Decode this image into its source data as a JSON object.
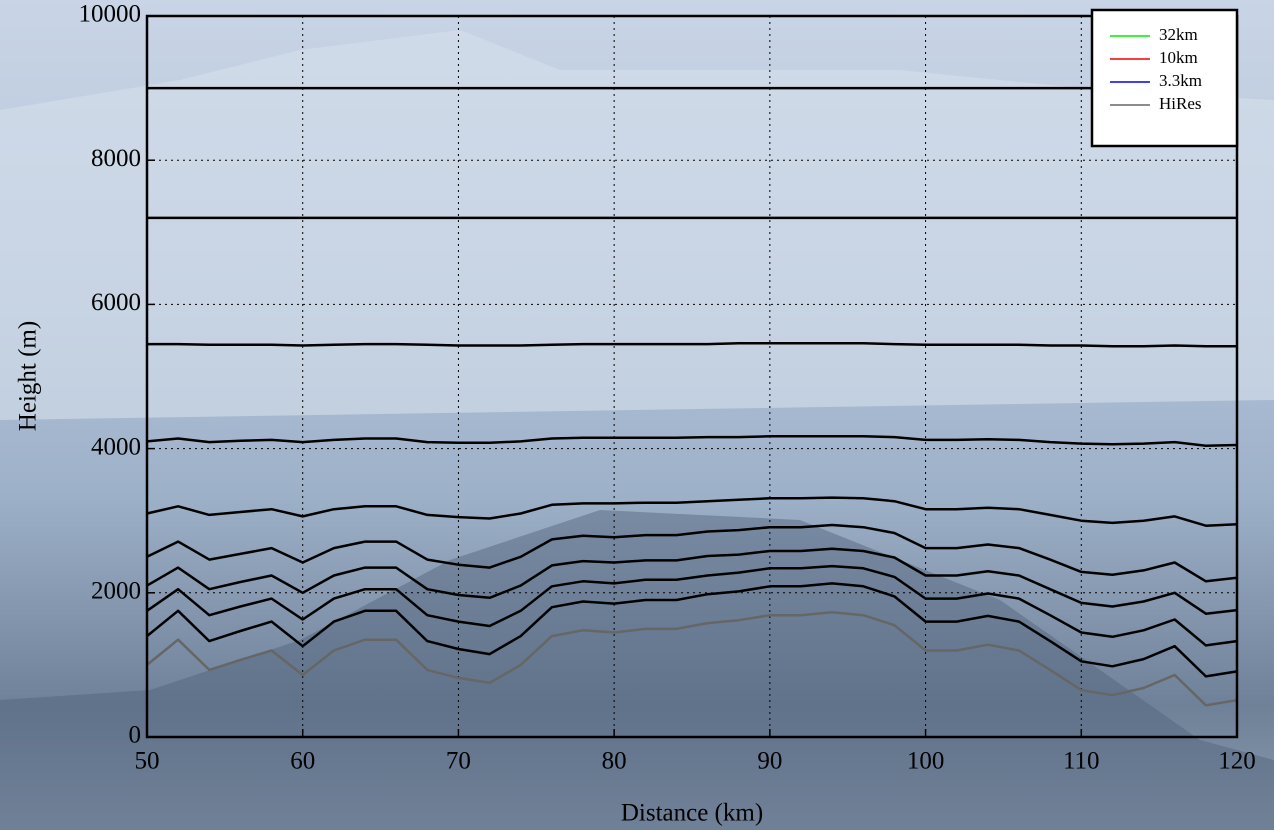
{
  "chart_data": {
    "type": "line",
    "xlabel": "Distance (km)",
    "ylabel": "Height (m)",
    "xlim": [
      50,
      120
    ],
    "xticks": [
      50,
      60,
      70,
      80,
      90,
      100,
      110,
      120
    ],
    "ylim": [
      0,
      10000
    ],
    "yticks": [
      0,
      2000,
      4000,
      6000,
      8000,
      10000
    ],
    "grid": true,
    "legend_position": "upper right",
    "x": [
      50,
      52,
      54,
      56,
      58,
      60,
      62,
      64,
      66,
      68,
      70,
      72,
      74,
      76,
      78,
      80,
      82,
      84,
      86,
      88,
      90,
      92,
      94,
      96,
      98,
      100,
      102,
      104,
      106,
      108,
      110,
      112,
      114,
      116,
      118,
      120
    ],
    "series": [
      {
        "name": "32km",
        "color": "#00ee00",
        "values": [
          null,
          null,
          null,
          null,
          null,
          null,
          null,
          null,
          null,
          null,
          null,
          null,
          null,
          null,
          null,
          null,
          null,
          null,
          null,
          null,
          null,
          null,
          null,
          null,
          null,
          null,
          null,
          null,
          null,
          null,
          null,
          null,
          null,
          null,
          null,
          null
        ]
      },
      {
        "name": "10km",
        "color": "#ee0000",
        "values": [
          null,
          null,
          null,
          null,
          null,
          null,
          null,
          null,
          null,
          null,
          null,
          null,
          null,
          null,
          null,
          null,
          null,
          null,
          null,
          null,
          null,
          null,
          null,
          null,
          null,
          null,
          null,
          null,
          null,
          null,
          null,
          null,
          null,
          null,
          null,
          null
        ]
      },
      {
        "name": "3.3km",
        "color": "#0000ee",
        "values": [
          null,
          null,
          null,
          null,
          null,
          null,
          null,
          null,
          null,
          null,
          null,
          null,
          null,
          null,
          null,
          null,
          null,
          null,
          null,
          null,
          null,
          null,
          null,
          null,
          null,
          null,
          null,
          null,
          null,
          null,
          null,
          null,
          null,
          null,
          null,
          null
        ]
      },
      {
        "name": "HiRes",
        "color": "#666666",
        "values": [
          1000,
          1350,
          930,
          1070,
          1200,
          860,
          1200,
          1350,
          1350,
          930,
          820,
          750,
          1000,
          1400,
          1480,
          1450,
          1500,
          1500,
          1580,
          1620,
          1690,
          1690,
          1730,
          1690,
          1550,
          1200,
          1200,
          1280,
          1200,
          930,
          650,
          580,
          680,
          860,
          440,
          510
        ]
      },
      {
        "color": "#000000",
        "values": [
          1400,
          1750,
          1330,
          1470,
          1600,
          1260,
          1600,
          1750,
          1750,
          1330,
          1220,
          1150,
          1400,
          1800,
          1880,
          1850,
          1900,
          1900,
          1980,
          2020,
          2090,
          2090,
          2130,
          2090,
          1950,
          1600,
          1600,
          1680,
          1600,
          1330,
          1050,
          980,
          1080,
          1260,
          840,
          910
        ]
      },
      {
        "color": "#000000",
        "values": [
          1750,
          2050,
          1690,
          1810,
          1920,
          1630,
          1920,
          2050,
          2050,
          1690,
          1600,
          1540,
          1750,
          2090,
          2160,
          2130,
          2180,
          2180,
          2240,
          2280,
          2340,
          2340,
          2370,
          2340,
          2220,
          1920,
          1920,
          1990,
          1920,
          1690,
          1450,
          1390,
          1480,
          1630,
          1270,
          1330
        ]
      },
      {
        "color": "#000000",
        "values": [
          2100,
          2350,
          2050,
          2150,
          2240,
          2000,
          2240,
          2350,
          2350,
          2050,
          1970,
          1930,
          2100,
          2380,
          2440,
          2420,
          2450,
          2450,
          2510,
          2530,
          2580,
          2580,
          2610,
          2580,
          2490,
          2240,
          2240,
          2300,
          2240,
          2050,
          1860,
          1810,
          1880,
          2000,
          1710,
          1760
        ]
      },
      {
        "color": "#000000",
        "values": [
          2500,
          2710,
          2460,
          2540,
          2620,
          2420,
          2620,
          2710,
          2710,
          2460,
          2390,
          2350,
          2500,
          2740,
          2790,
          2770,
          2800,
          2800,
          2850,
          2870,
          2910,
          2910,
          2940,
          2910,
          2830,
          2620,
          2620,
          2670,
          2620,
          2460,
          2290,
          2250,
          2310,
          2420,
          2160,
          2210
        ]
      },
      {
        "color": "#000000",
        "values": [
          3100,
          3200,
          3080,
          3120,
          3160,
          3060,
          3160,
          3200,
          3200,
          3080,
          3050,
          3030,
          3100,
          3220,
          3240,
          3240,
          3250,
          3250,
          3270,
          3290,
          3310,
          3310,
          3320,
          3310,
          3270,
          3160,
          3160,
          3180,
          3160,
          3080,
          3000,
          2970,
          3000,
          3060,
          2930,
          2950
        ]
      },
      {
        "color": "#000000",
        "values": [
          4100,
          4140,
          4090,
          4110,
          4120,
          4090,
          4120,
          4140,
          4140,
          4090,
          4080,
          4080,
          4100,
          4140,
          4150,
          4150,
          4150,
          4150,
          4160,
          4160,
          4170,
          4170,
          4170,
          4170,
          4160,
          4120,
          4120,
          4130,
          4120,
          4090,
          4070,
          4060,
          4070,
          4090,
          4040,
          4050
        ]
      },
      {
        "color": "#000000",
        "values": [
          5450,
          5450,
          5440,
          5440,
          5440,
          5430,
          5440,
          5450,
          5450,
          5440,
          5430,
          5430,
          5430,
          5440,
          5450,
          5450,
          5450,
          5450,
          5450,
          5460,
          5460,
          5460,
          5460,
          5460,
          5450,
          5440,
          5440,
          5440,
          5440,
          5430,
          5430,
          5420,
          5420,
          5430,
          5420,
          5420
        ]
      },
      {
        "color": "#000000",
        "values": [
          7200,
          7200,
          7200,
          7200,
          7200,
          7200,
          7200,
          7200,
          7200,
          7200,
          7200,
          7200,
          7200,
          7200,
          7200,
          7200,
          7200,
          7200,
          7200,
          7200,
          7200,
          7200,
          7200,
          7200,
          7200,
          7200,
          7200,
          7200,
          7200,
          7200,
          7200,
          7200,
          7200,
          7200,
          7200,
          7200
        ]
      },
      {
        "color": "#000000",
        "values": [
          9000,
          9000,
          9000,
          9000,
          9000,
          9000,
          9000,
          9000,
          9000,
          9000,
          9000,
          9000,
          9000,
          9000,
          9000,
          9000,
          9000,
          9000,
          9000,
          9000,
          9000,
          9000,
          9000,
          9000,
          9000,
          9000,
          9000,
          9000,
          9000,
          9000,
          9000,
          9000,
          9000,
          9000,
          9000,
          9000
        ]
      }
    ]
  }
}
